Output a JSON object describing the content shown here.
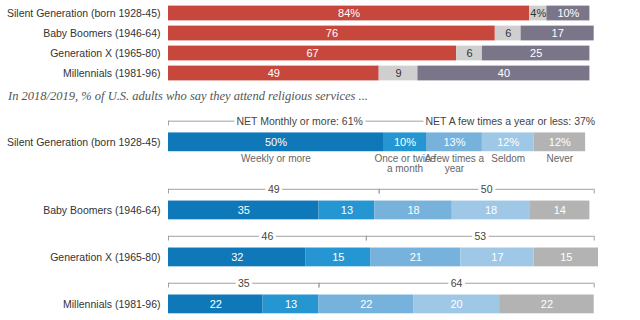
{
  "chart_data": [
    {
      "type": "bar",
      "orientation": "horizontal",
      "stacked": true,
      "data_labels": true,
      "tick_labels": "y",
      "categories": [
        "Silent Generation (born 1928-45)",
        "Baby Boomers (1946-64)",
        "Generation X (1965-80)",
        "Millennials (1981-96)"
      ],
      "xlim": [
        0,
        100
      ],
      "series": [
        {
          "color": "#c8473c",
          "values": [
            84,
            76,
            67,
            49
          ],
          "value_labels": [
            "84%",
            "76",
            "67",
            "49"
          ]
        },
        {
          "color": "#cfcfcf",
          "values": [
            4,
            6,
            6,
            9
          ],
          "value_labels": [
            "4%",
            "6",
            "6",
            "9"
          ]
        },
        {
          "color": "#7b7589",
          "values": [
            10,
            17,
            25,
            40
          ],
          "value_labels": [
            "10%",
            "17",
            "25",
            "40"
          ]
        }
      ]
    },
    {
      "type": "bar",
      "orientation": "horizontal",
      "stacked": true,
      "data_labels": true,
      "tick_labels": "y",
      "subtitle": "In 2018/2019, % of U.S. adults who say they attend religious services ...",
      "categories": [
        "Silent Generation (born 1928-45)",
        "Baby Boomers (1946-64)",
        "Generation X (1965-80)",
        "Millennials (1981-96)"
      ],
      "xlim": [
        0,
        100
      ],
      "series": [
        {
          "name": "Weekly or more",
          "color": "#0f78b8",
          "values": [
            50,
            35,
            32,
            22
          ],
          "value_labels": [
            "50%",
            "35",
            "32",
            "22"
          ]
        },
        {
          "name": "Once or twice a month",
          "color": "#2596d1",
          "values": [
            10,
            13,
            15,
            13
          ],
          "value_labels": [
            "10%",
            "13",
            "15",
            "13"
          ]
        },
        {
          "name": "A few times a year",
          "color": "#76b2db",
          "values": [
            13,
            18,
            21,
            22
          ],
          "value_labels": [
            "13%",
            "18",
            "21",
            "22"
          ]
        },
        {
          "name": "Seldom",
          "color": "#9fc8e6",
          "values": [
            12,
            18,
            17,
            20
          ],
          "value_labels": [
            "12%",
            "18",
            "17",
            "20"
          ]
        },
        {
          "name": "Never",
          "color": "#b3b3b3",
          "values": [
            12,
            14,
            15,
            22
          ],
          "value_labels": [
            "12%",
            "14",
            "15",
            "22"
          ]
        }
      ],
      "nets": [
        {
          "values": [
            61,
            49,
            46,
            35
          ],
          "value_labels": [
            "NET Monthly or more: 61%",
            "49",
            "46",
            "35"
          ]
        },
        {
          "values": [
            37,
            50,
            53,
            64
          ],
          "value_labels": [
            "NET A few times a year or less: 37%",
            "50",
            "53",
            "64"
          ]
        }
      ]
    }
  ]
}
